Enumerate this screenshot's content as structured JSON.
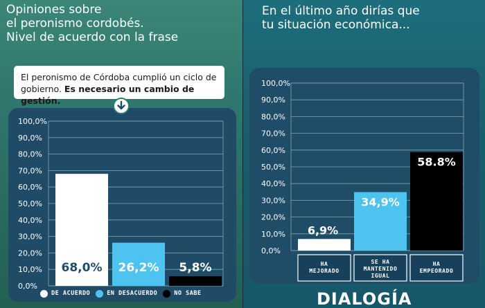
{
  "left": {
    "title_lines": [
      "Opiniones sobre",
      "el peronismo cordobés.",
      "Nivel de acuerdo con la frase"
    ],
    "quote_text": "El peronismo de Córdoba cumplió un ciclo de gobierno.",
    "quote_bold": "Es necesario un cambio de gestión.",
    "arrow_icon": "arrow-down-icon"
  },
  "right": {
    "title_lines": [
      "En el último año dirías que",
      "tu situación económica..."
    ]
  },
  "brand": "DIALOGÍA",
  "colors": {
    "white": "#ffffff",
    "light_blue": "#4fc3f0",
    "black": "#000000",
    "value_dark": "#1f4d6a"
  },
  "chart_data": [
    {
      "type": "bar",
      "categories": [
        "DE ACUERDO",
        "EN DESACUERDO",
        "NO SABE"
      ],
      "values": [
        68.0,
        26.2,
        5.8
      ],
      "value_labels": [
        "68,0%",
        "26,2%",
        "5,8%"
      ],
      "bar_colors": [
        "#ffffff",
        "#4fc3f0",
        "#000000"
      ],
      "ylim": [
        0,
        100
      ],
      "ytick_labels": [
        "0,0%",
        "10,0%",
        "20,0%",
        "30,0%",
        "40,0%",
        "50,0%",
        "60,0%",
        "70,0%",
        "80,0%",
        "90,0%",
        "100,0%"
      ],
      "legend": [
        "DE ACUERDO",
        "EN DESACUERDO",
        "NO SABE"
      ],
      "legend_position": "bottom",
      "grid": true
    },
    {
      "type": "bar",
      "categories": [
        "HA MEJORADO",
        "SE HA MANTENIDO IGUAL",
        "HA EMPEORADO"
      ],
      "category_lines": [
        [
          "HA",
          "MEJORADO"
        ],
        [
          "SE HA",
          "MANTENIDO",
          "IGUAL"
        ],
        [
          "HA",
          "EMPEORADO"
        ]
      ],
      "values": [
        6.9,
        34.9,
        58.8
      ],
      "value_labels": [
        "6,9%",
        "34,9%",
        "58.8%"
      ],
      "bar_colors": [
        "#ffffff",
        "#4fc3f0",
        "#000000"
      ],
      "ylim": [
        0,
        100
      ],
      "ytick_labels": [
        "0,0%",
        "10,0%",
        "20,0%",
        "30,0%",
        "40,0%",
        "50,0%",
        "60,0%",
        "70,0%",
        "80,0%",
        "90,0%",
        "100,0%"
      ],
      "grid": true
    }
  ]
}
